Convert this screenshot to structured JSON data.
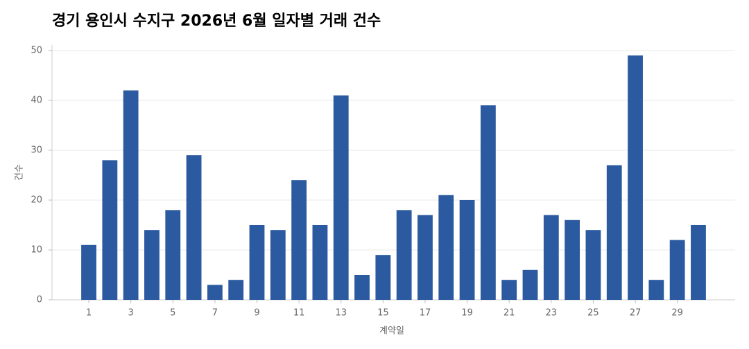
{
  "chart_data": {
    "type": "bar",
    "title": "경기 용인시 수지구 2026년 6월 일자별 거래 건수",
    "x_label": "계약일",
    "y_label": "건수",
    "x": [
      1,
      2,
      3,
      4,
      5,
      6,
      7,
      8,
      9,
      10,
      11,
      12,
      13,
      14,
      15,
      16,
      17,
      18,
      19,
      20,
      21,
      22,
      23,
      24,
      25,
      26,
      27,
      28,
      29,
      30
    ],
    "values": [
      11,
      28,
      42,
      14,
      18,
      29,
      3,
      4,
      15,
      14,
      24,
      15,
      41,
      5,
      9,
      18,
      17,
      21,
      20,
      39,
      4,
      6,
      17,
      16,
      14,
      27,
      49,
      4,
      12,
      15
    ],
    "color": "#2c5aa0",
    "xlim": [
      -0.75,
      31.75
    ],
    "xticks": [
      1,
      3,
      5,
      7,
      9,
      11,
      13,
      15,
      17,
      19,
      21,
      23,
      25,
      27,
      29
    ],
    "ylim": [
      0,
      51.1
    ],
    "yticks": [
      0,
      10,
      20,
      30,
      40,
      50
    ],
    "grid": true
  }
}
